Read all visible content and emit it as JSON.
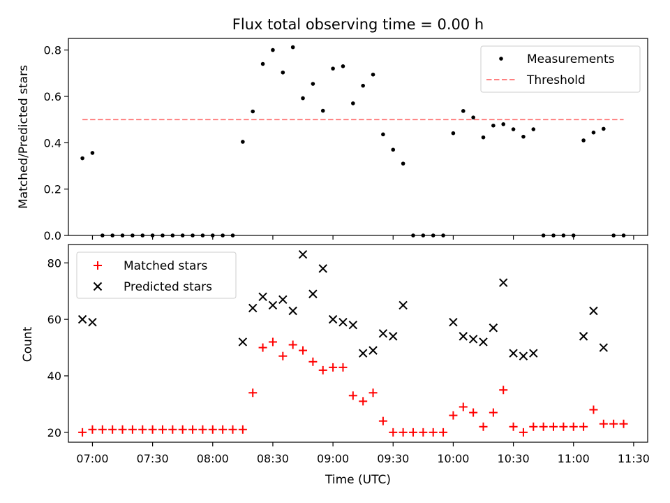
{
  "title": "Flux total observing time = 0.00 h",
  "chart_data": [
    {
      "type": "scatter",
      "ylabel": "Matched/Predicted stars",
      "xlabel": "",
      "xlim": [
        "06:48",
        "11:37"
      ],
      "ylim": [
        0,
        0.85
      ],
      "yticks": [
        "0.0",
        "0.2",
        "0.4",
        "0.6",
        "0.8"
      ],
      "legend_position": "top-right",
      "colors": {
        "measurements": "#000000",
        "threshold": "#ff8080"
      },
      "series": [
        {
          "name": "Measurements",
          "kind": "points",
          "x": [
            "06:55",
            "07:00",
            "07:05",
            "07:10",
            "07:15",
            "07:20",
            "07:25",
            "07:30",
            "07:35",
            "07:40",
            "07:45",
            "07:50",
            "07:55",
            "08:00",
            "08:05",
            "08:10",
            "08:15",
            "08:20",
            "08:25",
            "08:30",
            "08:35",
            "08:40",
            "08:45",
            "08:50",
            "08:55",
            "09:00",
            "09:05",
            "09:10",
            "09:15",
            "09:20",
            "09:25",
            "09:30",
            "09:35",
            "09:40",
            "09:45",
            "09:50",
            "09:55",
            "10:00",
            "10:05",
            "10:10",
            "10:15",
            "10:20",
            "10:25",
            "10:30",
            "10:35",
            "10:40",
            "10:45",
            "10:50",
            "10:55",
            "11:00",
            "11:05",
            "11:10",
            "11:15",
            "11:20",
            "11:25"
          ],
          "y": [
            0.333,
            0.356,
            0,
            0,
            0,
            0,
            0,
            0,
            0,
            0,
            0,
            0,
            0,
            0,
            0,
            0,
            0.404,
            0.535,
            0.74,
            0.8,
            0.703,
            0.812,
            0.592,
            0.654,
            0.538,
            0.72,
            0.73,
            0.57,
            0.646,
            0.694,
            0.436,
            0.37,
            0.31,
            0,
            0,
            0,
            0,
            0.441,
            0.537,
            0.509,
            0.423,
            0.474,
            0.48,
            0.458,
            0.426,
            0.458,
            0,
            0,
            0,
            0,
            0.41,
            0.444,
            0.46,
            0,
            0
          ]
        },
        {
          "name": "Threshold",
          "kind": "line",
          "x": [
            "06:55",
            "11:25"
          ],
          "y": [
            0.5,
            0.5
          ]
        }
      ]
    },
    {
      "type": "scatter",
      "ylabel": "Count",
      "xlabel": "Time (UTC)",
      "xlim": [
        "06:48",
        "11:37"
      ],
      "ylim": [
        16.5,
        86.5
      ],
      "yticks": [
        "20",
        "40",
        "60",
        "80"
      ],
      "xticks": [
        "07:00",
        "07:30",
        "08:00",
        "08:30",
        "09:00",
        "09:30",
        "10:00",
        "10:30",
        "11:00",
        "11:30"
      ],
      "legend_position": "top-left",
      "colors": {
        "matched": "#ff0000",
        "predicted": "#000000"
      },
      "series": [
        {
          "name": "Matched stars",
          "marker": "plus",
          "x": [
            "06:55",
            "07:00",
            "07:05",
            "07:10",
            "07:15",
            "07:20",
            "07:25",
            "07:30",
            "07:35",
            "07:40",
            "07:45",
            "07:50",
            "07:55",
            "08:00",
            "08:05",
            "08:10",
            "08:15",
            "08:20",
            "08:25",
            "08:30",
            "08:35",
            "08:40",
            "08:45",
            "08:50",
            "08:55",
            "09:00",
            "09:05",
            "09:10",
            "09:15",
            "09:20",
            "09:25",
            "09:30",
            "09:35",
            "09:40",
            "09:45",
            "09:50",
            "09:55",
            "10:00",
            "10:05",
            "10:10",
            "10:15",
            "10:20",
            "10:25",
            "10:30",
            "10:35",
            "10:40",
            "10:45",
            "10:50",
            "10:55",
            "11:00",
            "11:05",
            "11:10",
            "11:15",
            "11:20",
            "11:25"
          ],
          "y": [
            20,
            21,
            21,
            21,
            21,
            21,
            21,
            21,
            21,
            21,
            21,
            21,
            21,
            21,
            21,
            21,
            21,
            34,
            50,
            52,
            47,
            51,
            49,
            45,
            42,
            43,
            43,
            33,
            31,
            34,
            24,
            20,
            20,
            20,
            20,
            20,
            20,
            26,
            29,
            27,
            22,
            27,
            35,
            22,
            20,
            22,
            22,
            22,
            22,
            22,
            22,
            28,
            23,
            23,
            23
          ]
        },
        {
          "name": "Predicted stars",
          "marker": "x",
          "x": [
            "06:55",
            "07:00",
            "08:15",
            "08:20",
            "08:25",
            "08:30",
            "08:35",
            "08:40",
            "08:45",
            "08:50",
            "08:55",
            "09:00",
            "09:05",
            "09:10",
            "09:15",
            "09:20",
            "09:25",
            "09:30",
            "09:35",
            "10:00",
            "10:05",
            "10:10",
            "10:15",
            "10:20",
            "10:25",
            "10:30",
            "10:35",
            "10:40",
            "11:05",
            "11:10",
            "11:15"
          ],
          "y": [
            60,
            59,
            52,
            64,
            68,
            65,
            67,
            63,
            83,
            69,
            78,
            60,
            59,
            58,
            48,
            49,
            55,
            54,
            65,
            59,
            54,
            53,
            52,
            57,
            73,
            48,
            47,
            48,
            54,
            63,
            50
          ]
        }
      ]
    }
  ]
}
